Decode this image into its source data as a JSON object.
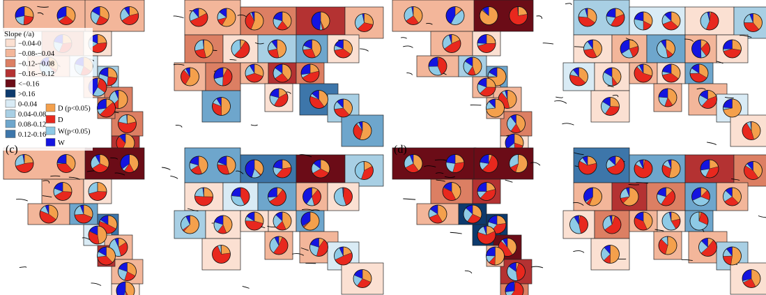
{
  "figure": {
    "panels": [
      {
        "id": "a",
        "label": "(a)",
        "label_visible": false
      },
      {
        "id": "b",
        "label": "(b)",
        "label_visible": false
      },
      {
        "id": "c",
        "label": "(c)",
        "label_visible": true
      },
      {
        "id": "d",
        "label": "(d)",
        "label_visible": true
      }
    ],
    "legend": {
      "title": "Slope (/a)",
      "slope_classes": [
        {
          "label": "−0.04-0",
          "color": "#fbe0d2"
        },
        {
          "label": "−0.08-−0.04",
          "color": "#f3b69a"
        },
        {
          "label": "−0.12-−0.08",
          "color": "#dc7f63"
        },
        {
          "label": "−0.16-−0.12",
          "color": "#b43232"
        },
        {
          "label": "<−0.16",
          "color": "#6b0c17"
        },
        {
          "label": ">0.16",
          "color": "#0d3a6d"
        },
        {
          "label": "0-0.04",
          "color": "#d9ebf5"
        },
        {
          "label": "0.04-0.08",
          "color": "#a8cfe4"
        },
        {
          "label": "0.08-0.12",
          "color": "#6ea6cc"
        },
        {
          "label": "0.12-0.16",
          "color": "#3d76aa"
        }
      ],
      "pie_classes": [
        {
          "label": "D (p<0.05)",
          "color": "#f4a04c"
        },
        {
          "label": "D",
          "color": "#e8281e"
        },
        {
          "label": "W(p<0.05)",
          "color": "#8ecae6"
        },
        {
          "label": "W",
          "color": "#1414e0"
        }
      ]
    }
  }
}
